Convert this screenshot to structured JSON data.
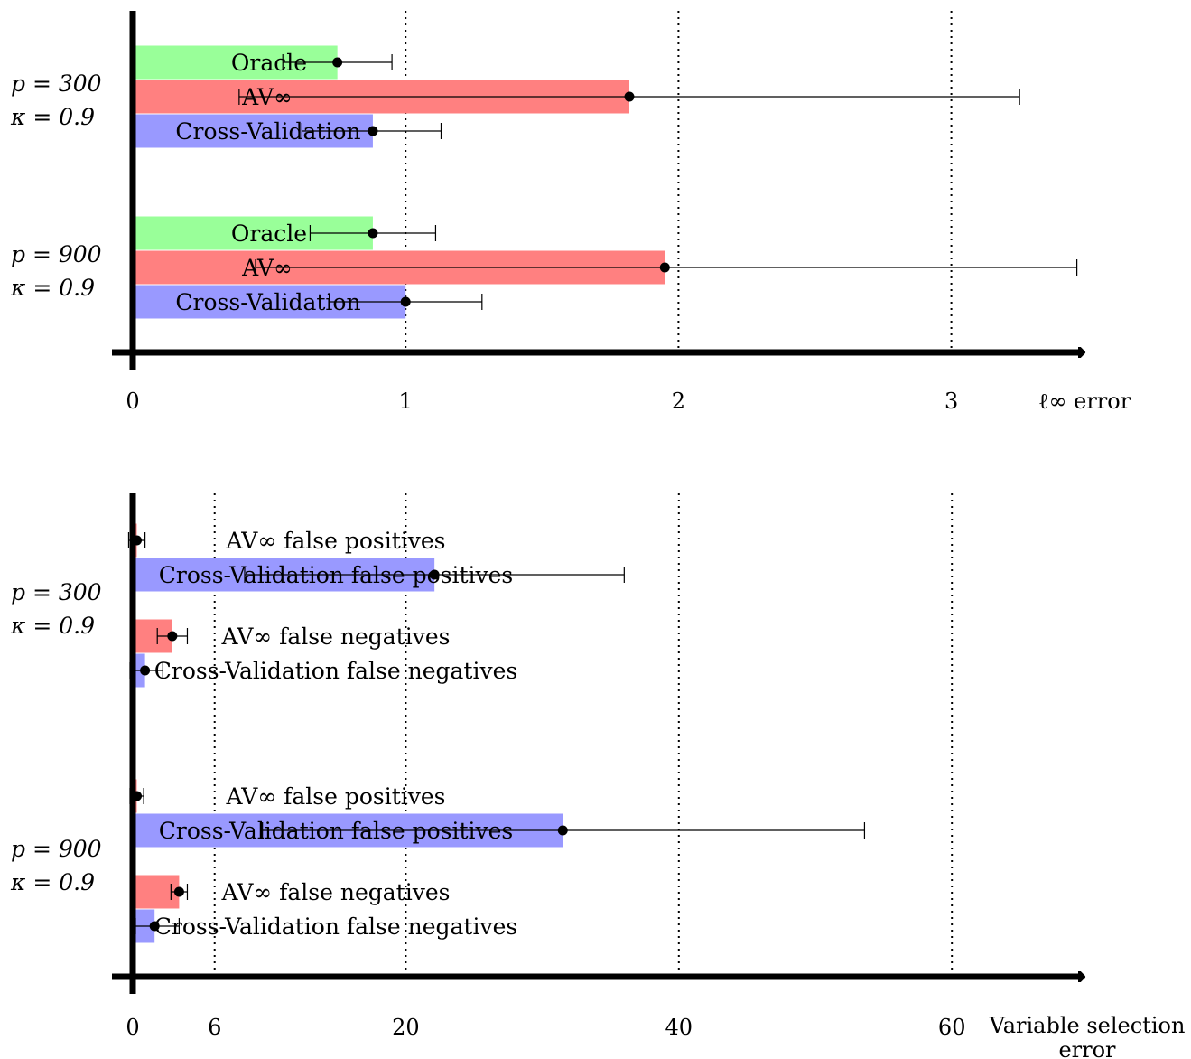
{
  "chart_data": [
    {
      "type": "bar",
      "orientation": "horizontal",
      "xlabel": "ℓ∞ error",
      "xticks": [
        0,
        1,
        2,
        3
      ],
      "xlim": [
        0,
        3.5
      ],
      "gridlines": [
        1,
        2,
        3
      ],
      "colors": {
        "Oracle": "#99ff99",
        "AV∞": "#ff8080",
        "Cross-Validation": "#9999ff"
      },
      "groups": [
        {
          "label_line1": "p = 300",
          "label_line2": "κ = 0.9",
          "bars": [
            {
              "label": "Oracle",
              "series": "Oracle",
              "value": 0.75,
              "err_low": 0.55,
              "err_high": 0.95
            },
            {
              "label": "AV∞",
              "series": "AV∞",
              "value": 1.82,
              "err_low": 0.39,
              "err_high": 3.25
            },
            {
              "label": "Cross-Validation",
              "series": "Cross-Validation",
              "value": 0.88,
              "err_low": 0.62,
              "err_high": 1.13
            }
          ]
        },
        {
          "label_line1": "p = 900",
          "label_line2": "κ = 0.9",
          "bars": [
            {
              "label": "Oracle",
              "series": "Oracle",
              "value": 0.88,
              "err_low": 0.65,
              "err_high": 1.11
            },
            {
              "label": "AV∞",
              "series": "AV∞",
              "value": 1.95,
              "err_low": 0.45,
              "err_high": 3.46
            },
            {
              "label": "Cross-Validation",
              "series": "Cross-Validation",
              "value": 1.0,
              "err_low": 0.72,
              "err_high": 1.28
            }
          ]
        }
      ]
    },
    {
      "type": "bar",
      "orientation": "horizontal",
      "xlabel_line1": "Variable selection",
      "xlabel_line2": "error",
      "xticks": [
        0,
        6,
        20,
        40,
        60
      ],
      "xlim": [
        0,
        70
      ],
      "gridlines": [
        6,
        20,
        40,
        60
      ],
      "colors": {
        "AV∞": "#ff8080",
        "Cross-Validation": "#9999ff"
      },
      "groups": [
        {
          "label_line1": "p = 300",
          "label_line2": "κ = 0.9",
          "bars": [
            {
              "label": "AV∞ false positives",
              "series": "AV∞",
              "value": 0.3,
              "err_low": -0.3,
              "err_high": 0.9
            },
            {
              "label": "Cross-Validation false positives",
              "series": "Cross-Validation",
              "value": 22.1,
              "err_low": 8.2,
              "err_high": 36.0
            },
            {
              "label": "AV∞ false negatives",
              "series": "AV∞",
              "value": 2.9,
              "err_low": 1.8,
              "err_high": 4.0
            },
            {
              "label": "Cross-Validation false negatives",
              "series": "Cross-Validation",
              "value": 0.9,
              "err_low": -0.2,
              "err_high": 2.2
            }
          ]
        },
        {
          "label_line1": "p = 900",
          "label_line2": "κ = 0.9",
          "bars": [
            {
              "label": "AV∞ false positives",
              "series": "AV∞",
              "value": 0.3,
              "err_low": -0.2,
              "err_high": 0.8
            },
            {
              "label": "Cross-Validation false positives",
              "series": "Cross-Validation",
              "value": 31.5,
              "err_low": 9.5,
              "err_high": 53.6
            },
            {
              "label": "AV∞ false negatives",
              "series": "AV∞",
              "value": 3.4,
              "err_low": 2.8,
              "err_high": 4.0
            },
            {
              "label": "Cross-Validation false negatives",
              "series": "Cross-Validation",
              "value": 1.6,
              "err_low": 0.2,
              "err_high": 3.4
            }
          ]
        }
      ]
    }
  ]
}
